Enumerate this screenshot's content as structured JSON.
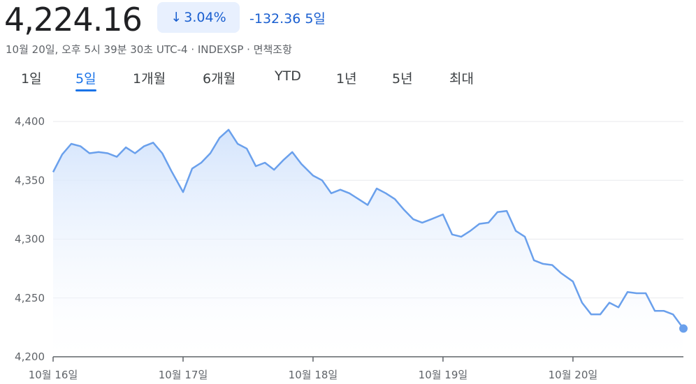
{
  "header": {
    "price": "4,224.16",
    "pct_arrow": "↓",
    "pct_change": "3.04%",
    "abs_change": "-132.36",
    "period": "5일",
    "meta": "10월 20일, 오후 5시 39분 30초 UTC-4 · INDEXSP · 면책조항"
  },
  "tabs": [
    {
      "label": "1일",
      "active": false
    },
    {
      "label": "5일",
      "active": true
    },
    {
      "label": "1개월",
      "active": false
    },
    {
      "label": "6개월",
      "active": false
    },
    {
      "label": "YTD",
      "active": false
    },
    {
      "label": "1년",
      "active": false
    },
    {
      "label": "5년",
      "active": false
    },
    {
      "label": "최대",
      "active": false
    }
  ],
  "colors": {
    "line": "#6aa0ec",
    "fill_top": "#d2e3fc",
    "accent": "#1a73e8",
    "grid": "#e8eaed"
  },
  "chart_data": {
    "type": "area",
    "title": "",
    "xlabel": "",
    "ylabel": "",
    "ylim": [
      4200,
      4400
    ],
    "yticks": [
      "4,400",
      "4,350",
      "4,300",
      "4,250",
      "4,200"
    ],
    "ytick_values": [
      4400,
      4350,
      4300,
      4250,
      4200
    ],
    "xlim": [
      0,
      4.85
    ],
    "xtick_labels": [
      "10월 16일",
      "10월 17일",
      "10월 18일",
      "10월 19일",
      "10월 20일"
    ],
    "xtick_values": [
      0,
      1,
      2,
      3,
      4
    ],
    "grid": true,
    "series": [
      {
        "name": "",
        "x": [
          0.0,
          0.07,
          0.14,
          0.21,
          0.28,
          0.35,
          0.42,
          0.49,
          0.56,
          0.63,
          0.7,
          0.77,
          0.84,
          0.91,
          1.0,
          1.07,
          1.14,
          1.21,
          1.28,
          1.35,
          1.42,
          1.49,
          1.56,
          1.63,
          1.7,
          1.77,
          1.84,
          1.91,
          2.0,
          2.07,
          2.14,
          2.21,
          2.28,
          2.35,
          2.42,
          2.49,
          2.56,
          2.63,
          2.7,
          2.77,
          2.84,
          2.91,
          3.0,
          3.07,
          3.14,
          3.21,
          3.28,
          3.35,
          3.42,
          3.49,
          3.56,
          3.63,
          3.7,
          3.77,
          3.84,
          3.91,
          4.0,
          4.07,
          4.14,
          4.21,
          4.28,
          4.35,
          4.42,
          4.49,
          4.56,
          4.63,
          4.7,
          4.77,
          4.85
        ],
        "values": [
          4357,
          4372,
          4381,
          4379,
          4373,
          4374,
          4373,
          4370,
          4378,
          4373,
          4379,
          4382,
          4373,
          4358,
          4340,
          4360,
          4365,
          4373,
          4386,
          4393,
          4381,
          4377,
          4362,
          4365,
          4359,
          4367,
          4374,
          4364,
          4354,
          4350,
          4339,
          4342,
          4339,
          4334,
          4329,
          4343,
          4339,
          4334,
          4325,
          4317,
          4314,
          4317,
          4321,
          4304,
          4302,
          4307,
          4313,
          4314,
          4323,
          4324,
          4307,
          4302,
          4282,
          4279,
          4278,
          4271,
          4264,
          4246,
          4236,
          4236,
          4246,
          4242,
          4255,
          4254,
          4254,
          4239,
          4239,
          4236,
          4224
        ]
      }
    ]
  }
}
